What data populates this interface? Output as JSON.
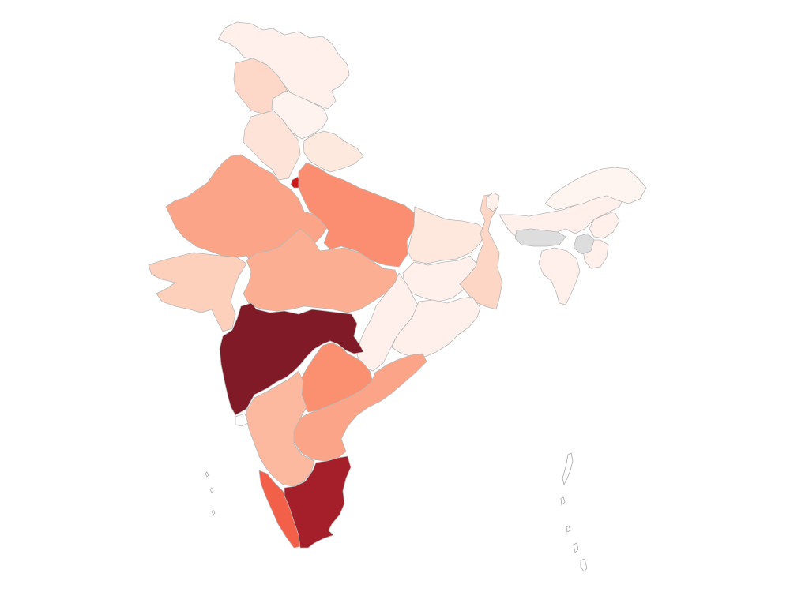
{
  "map": {
    "type": "choropleth",
    "subject": "India states",
    "no_data_color": "#dddddd",
    "border_color": "#b8b8b8",
    "regions": [
      {
        "id": "jammu-kashmir",
        "color": "#fff0eb"
      },
      {
        "id": "ladakh",
        "color": "#fff0eb"
      },
      {
        "id": "himachal-pradesh",
        "color": "#fff3ef"
      },
      {
        "id": "punjab",
        "color": "#fdd8c8"
      },
      {
        "id": "uttarakhand",
        "color": "#fee9df"
      },
      {
        "id": "haryana",
        "color": "#fee4d8"
      },
      {
        "id": "delhi",
        "color": "#cb181d"
      },
      {
        "id": "rajasthan",
        "color": "#fca487"
      },
      {
        "id": "uttar-pradesh",
        "color": "#fb8d70"
      },
      {
        "id": "gujarat",
        "color": "#fdd0bc"
      },
      {
        "id": "madhya-pradesh",
        "color": "#fcae92"
      },
      {
        "id": "bihar",
        "color": "#fee7dc"
      },
      {
        "id": "jharkhand",
        "color": "#fff0eb"
      },
      {
        "id": "west-bengal",
        "color": "#fdd6c5"
      },
      {
        "id": "chhattisgarh",
        "color": "#fff0eb"
      },
      {
        "id": "odisha",
        "color": "#fff0eb"
      },
      {
        "id": "maharashtra",
        "color": "#7f1a26"
      },
      {
        "id": "telangana",
        "color": "#fb9070"
      },
      {
        "id": "andhra-pradesh",
        "color": "#fca487"
      },
      {
        "id": "karnataka",
        "color": "#fcb9a0"
      },
      {
        "id": "goa",
        "color": "#ffffff"
      },
      {
        "id": "kerala",
        "color": "#f26049"
      },
      {
        "id": "tamil-nadu",
        "color": "#a51f2b"
      },
      {
        "id": "sikkim",
        "color": "#fff0eb"
      },
      {
        "id": "arunachal-pradesh",
        "color": "#fff5f0"
      },
      {
        "id": "assam",
        "color": "#fff0eb"
      },
      {
        "id": "meghalaya",
        "color": "#dddddd"
      },
      {
        "id": "nagaland",
        "color": "#fff0eb"
      },
      {
        "id": "manipur",
        "color": "#fff0eb"
      },
      {
        "id": "mizoram",
        "color": "#fff0eb"
      },
      {
        "id": "tripura",
        "color": "#dddddd"
      },
      {
        "id": "andaman-nicobar",
        "color": "#ffffff"
      },
      {
        "id": "lakshadweep",
        "color": "#ffffff"
      }
    ]
  }
}
